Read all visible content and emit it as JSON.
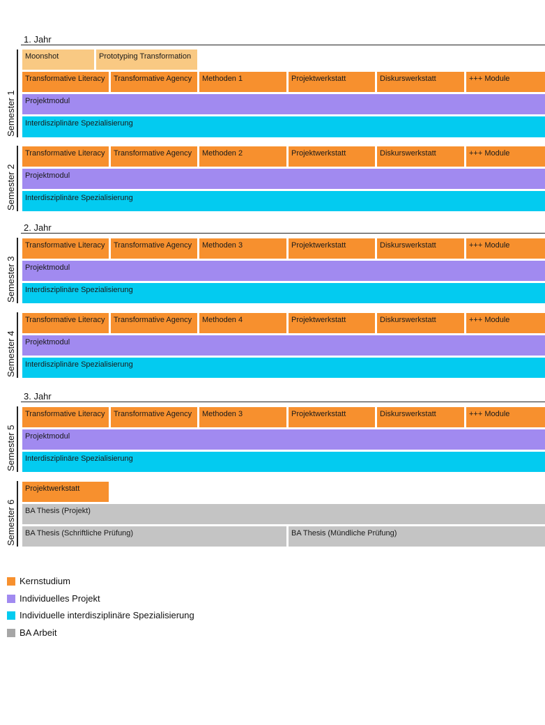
{
  "years": [
    "1. Jahr",
    "2. Jahr",
    "3. Jahr"
  ],
  "semesters": [
    "Semester 1",
    "Semester 2",
    "Semester 3",
    "Semester 4",
    "Semester 5",
    "Semester 6"
  ],
  "row_labels": {
    "literacy": "Transformative Literacy",
    "agency": "Transformative Agency",
    "methoden1": "Methoden 1",
    "methoden2": "Methoden 2",
    "methoden3": "Methoden 3",
    "methoden4": "Methoden 4",
    "werkstatt": "Projektwerkstatt",
    "diskurs": "Diskurswerkstatt",
    "module": "+++ Module",
    "projektmodul": "Projektmodul",
    "spezialisierung": "Interdisziplinäre Spezialisierung"
  },
  "semester1_extra": {
    "moonshot": "Moonshot",
    "prototyping": "Prototyping Transformation"
  },
  "semester6": {
    "werkstatt": "Projektwerkstatt",
    "thesis_projekt": "BA Thesis (Projekt)",
    "thesis_schriftlich": "BA Thesis (Schriftliche Prüfung)",
    "thesis_muendlich": "BA Thesis (Mündliche Prüfung)"
  },
  "legend": [
    {
      "label": "Kernstudium",
      "color": "#f7902e"
    },
    {
      "label": "Individuelles Projekt",
      "color": "#a18af0"
    },
    {
      "label": "Individuelle interdisziplinäre Spezialisierung",
      "color": "#03cbf0"
    },
    {
      "label": "BA Arbeit",
      "color": "#a6a6a6"
    }
  ]
}
